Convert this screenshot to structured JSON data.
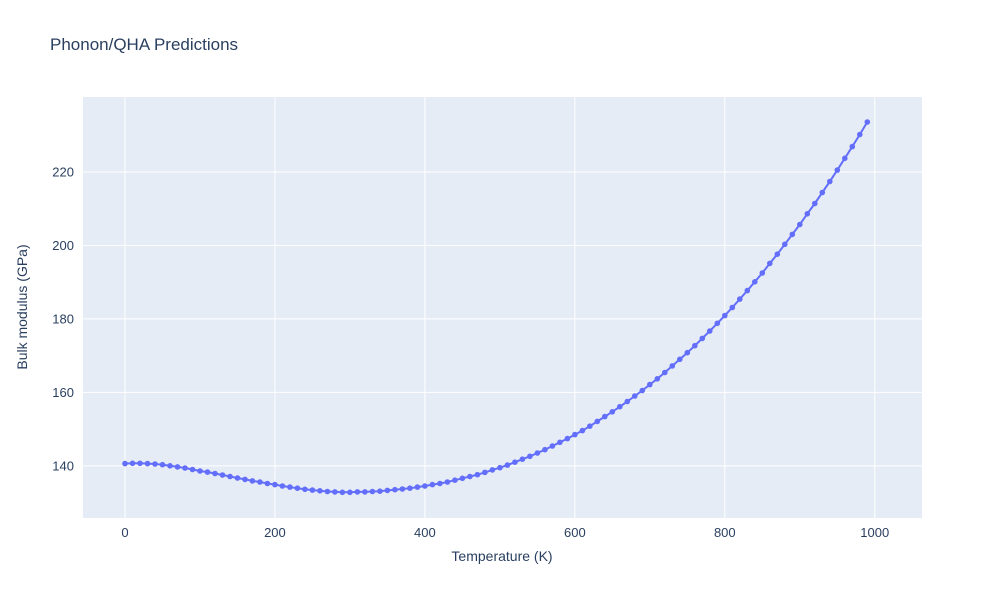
{
  "chart_data": {
    "type": "line",
    "title": "Phonon/QHA Predictions",
    "xlabel": "Temperature (K)",
    "ylabel": "Bulk modulus (GPa)",
    "legend": "none",
    "grid": true,
    "plot_bg": "#e5ecf6",
    "grid_color": "#ffffff",
    "text_color": "#2a3f5f",
    "line_color": "#636efa",
    "marker_size": 5.6,
    "line_width": 2,
    "x_ticks": [
      0,
      200,
      400,
      600,
      800,
      1000
    ],
    "y_ticks": [
      140,
      160,
      180,
      200,
      220
    ],
    "x_range": [
      -56,
      1063
    ],
    "y_range": [
      125.8,
      240.4
    ],
    "x": [
      0,
      10,
      20,
      30,
      40,
      50,
      60,
      70,
      80,
      90,
      100,
      110,
      120,
      130,
      140,
      150,
      160,
      170,
      180,
      190,
      200,
      210,
      220,
      230,
      240,
      250,
      260,
      270,
      280,
      290,
      300,
      310,
      320,
      330,
      340,
      350,
      360,
      370,
      380,
      390,
      400,
      410,
      420,
      430,
      440,
      450,
      460,
      470,
      480,
      490,
      500,
      510,
      520,
      530,
      540,
      550,
      560,
      570,
      580,
      590,
      600,
      610,
      620,
      630,
      640,
      650,
      660,
      670,
      680,
      690,
      700,
      710,
      720,
      730,
      740,
      750,
      760,
      770,
      780,
      790,
      800,
      810,
      820,
      830,
      840,
      850,
      860,
      870,
      880,
      890,
      900,
      910,
      920,
      930,
      940,
      950,
      960,
      970,
      980,
      990
    ],
    "y": [
      140.6,
      140.7,
      140.7,
      140.6,
      140.5,
      140.3,
      140.0,
      139.7,
      139.4,
      139.0,
      138.6,
      138.3,
      137.9,
      137.5,
      137.1,
      136.7,
      136.3,
      135.9,
      135.6,
      135.2,
      134.9,
      134.5,
      134.2,
      133.9,
      133.6,
      133.4,
      133.2,
      133.0,
      132.9,
      132.8,
      132.8,
      132.9,
      132.9,
      133.0,
      133.1,
      133.3,
      133.5,
      133.7,
      133.9,
      134.2,
      134.5,
      134.9,
      135.2,
      135.6,
      136.1,
      136.6,
      137.1,
      137.6,
      138.2,
      138.9,
      139.5,
      140.2,
      141.0,
      141.8,
      142.6,
      143.5,
      144.4,
      145.4,
      146.4,
      147.4,
      148.5,
      149.6,
      150.8,
      152.1,
      153.4,
      154.7,
      156.1,
      157.5,
      159.0,
      160.5,
      162.1,
      163.7,
      165.4,
      167.2,
      169.0,
      170.8,
      172.7,
      174.7,
      176.7,
      178.8,
      180.9,
      183.1,
      185.4,
      187.7,
      190.1,
      192.5,
      195.1,
      197.6,
      200.3,
      203.0,
      205.7,
      208.6,
      211.4,
      214.4,
      217.4,
      220.5,
      223.7,
      226.9,
      230.2,
      233.6
    ]
  }
}
